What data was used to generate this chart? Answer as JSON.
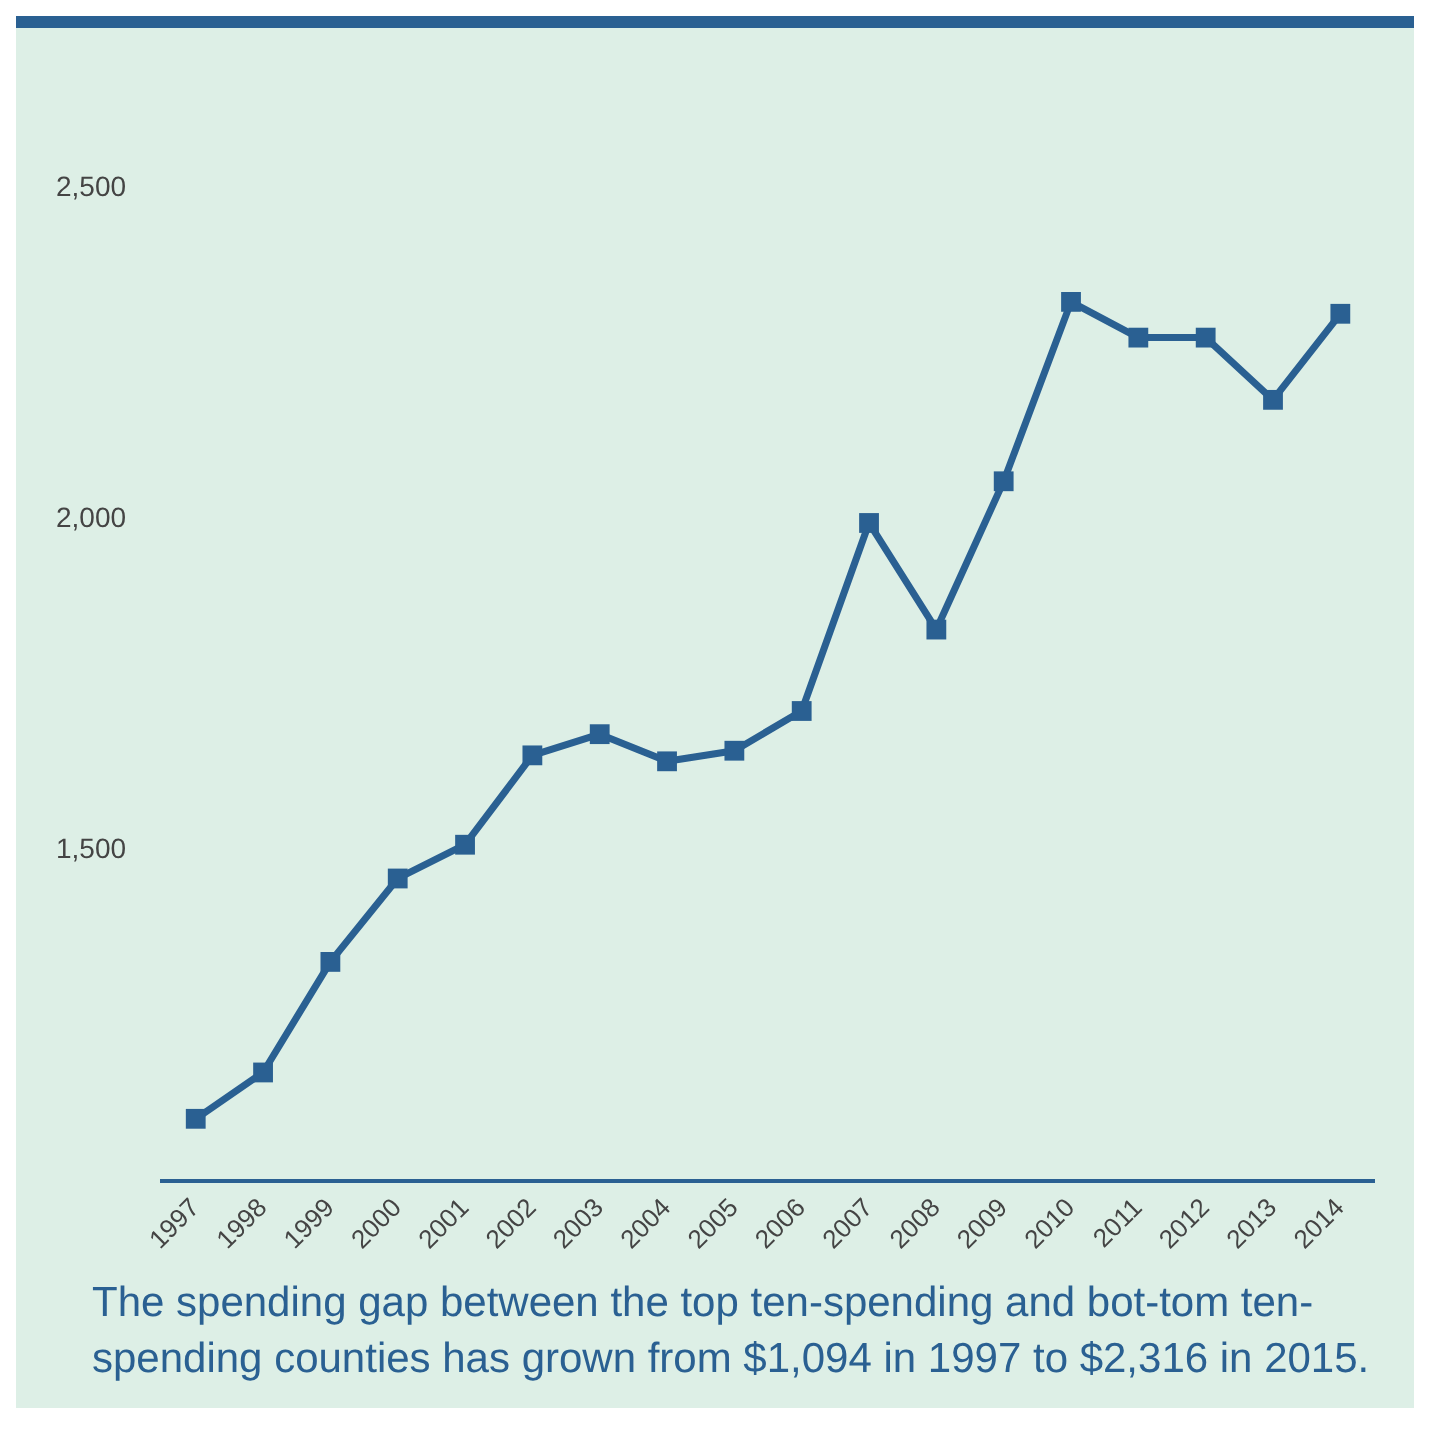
{
  "chart_data": {
    "type": "line",
    "categories": [
      "1997",
      "1998",
      "1999",
      "2000",
      "2001",
      "2002",
      "2003",
      "2004",
      "2005",
      "2006",
      "2007",
      "2008",
      "2009",
      "2010",
      "2011",
      "2012",
      "2013",
      "2014"
    ],
    "series": [
      {
        "color": "#2a6092",
        "values": [
          1094,
          1164,
          1331,
          1457,
          1508,
          1643,
          1675,
          1634,
          1650,
          1710,
          1994,
          1833,
          2057,
          2328,
          2274,
          2274,
          2180,
          2310
        ]
      }
    ],
    "ylim": [
      1000,
      2500
    ],
    "yticks": [
      {
        "value": 1500,
        "label": "1,500"
      },
      {
        "value": 2000,
        "label": "2,000"
      },
      {
        "value": 2500,
        "label": "2,500"
      }
    ],
    "grid": false,
    "legend": false,
    "marker": "square",
    "line_style": "solid",
    "annotations": [
      "The spending gap between the top ten-spending and bot-tom ten-spending counties has grown from $1,094 in 1997 to $2,316 in 2015."
    ]
  }
}
